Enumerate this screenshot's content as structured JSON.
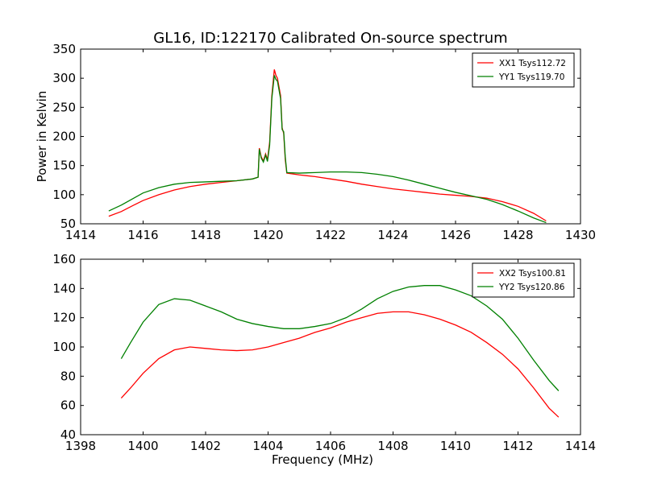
{
  "title": "GL16, ID:122170 Calibrated On-source spectrum",
  "colors": {
    "xx": "#ff0000",
    "yy": "#008000",
    "axes": "#000000",
    "background": "#ffffff"
  },
  "chart_data": [
    {
      "type": "line",
      "title": "GL16, ID:122170 Calibrated On-source spectrum",
      "xlabel": "",
      "ylabel": "Power in Kelvin",
      "xlim": [
        1414,
        1430
      ],
      "ylim": [
        50,
        350
      ],
      "xticks": [
        1414,
        1416,
        1418,
        1420,
        1422,
        1424,
        1426,
        1428,
        1430
      ],
      "yticks": [
        50,
        100,
        150,
        200,
        250,
        300,
        350
      ],
      "xtick_labels": [
        "1414",
        "1416",
        "1418",
        "1420",
        "1422",
        "1424",
        "1426",
        "1428",
        "1430"
      ],
      "ytick_labels": [
        "50",
        "100",
        "150",
        "200",
        "250",
        "300",
        "350"
      ],
      "grid": false,
      "legend_position": "top-right",
      "series": [
        {
          "name": "XX1 Tsys112.72",
          "color": "#ff0000",
          "points": [
            [
              1414.9,
              63
            ],
            [
              1415.3,
              71
            ],
            [
              1415.7,
              82
            ],
            [
              1416,
              90
            ],
            [
              1416.5,
              100
            ],
            [
              1417,
              108
            ],
            [
              1417.5,
              114
            ],
            [
              1418,
              118
            ],
            [
              1418.5,
              121
            ],
            [
              1419,
              124
            ],
            [
              1419.5,
              127
            ],
            [
              1419.68,
              130
            ],
            [
              1419.72,
              180
            ],
            [
              1419.78,
              165
            ],
            [
              1419.85,
              158
            ],
            [
              1419.92,
              170
            ],
            [
              1419.98,
              160
            ],
            [
              1420.05,
              190
            ],
            [
              1420.12,
              270
            ],
            [
              1420.2,
              315
            ],
            [
              1420.25,
              305
            ],
            [
              1420.3,
              300
            ],
            [
              1420.35,
              285
            ],
            [
              1420.4,
              270
            ],
            [
              1420.45,
              215
            ],
            [
              1420.5,
              205
            ],
            [
              1420.55,
              160
            ],
            [
              1420.6,
              137
            ],
            [
              1421,
              134
            ],
            [
              1421.5,
              131
            ],
            [
              1422,
              127
            ],
            [
              1422.5,
              123
            ],
            [
              1423,
              118
            ],
            [
              1423.5,
              114
            ],
            [
              1424,
              110
            ],
            [
              1424.5,
              107
            ],
            [
              1425,
              104
            ],
            [
              1425.5,
              101
            ],
            [
              1426,
              99
            ],
            [
              1426.5,
              97
            ],
            [
              1427,
              94
            ],
            [
              1427.5,
              88
            ],
            [
              1428,
              80
            ],
            [
              1428.5,
              68
            ],
            [
              1428.9,
              55
            ]
          ]
        },
        {
          "name": "YY1 Tsys119.70",
          "color": "#008000",
          "points": [
            [
              1414.9,
              72
            ],
            [
              1415.3,
              82
            ],
            [
              1415.7,
              94
            ],
            [
              1416,
              103
            ],
            [
              1416.5,
              112
            ],
            [
              1417,
              118
            ],
            [
              1417.5,
              121
            ],
            [
              1418,
              122
            ],
            [
              1418.5,
              123
            ],
            [
              1419,
              124
            ],
            [
              1419.5,
              127
            ],
            [
              1419.68,
              130
            ],
            [
              1419.72,
              178
            ],
            [
              1419.78,
              163
            ],
            [
              1419.85,
              156
            ],
            [
              1419.92,
              168
            ],
            [
              1419.98,
              157
            ],
            [
              1420.05,
              185
            ],
            [
              1420.12,
              265
            ],
            [
              1420.2,
              305
            ],
            [
              1420.25,
              298
            ],
            [
              1420.3,
              295
            ],
            [
              1420.35,
              280
            ],
            [
              1420.4,
              265
            ],
            [
              1420.45,
              212
            ],
            [
              1420.5,
              208
            ],
            [
              1420.55,
              165
            ],
            [
              1420.6,
              138
            ],
            [
              1421,
              137
            ],
            [
              1421.5,
              138
            ],
            [
              1422,
              139
            ],
            [
              1422.5,
              139
            ],
            [
              1423,
              138
            ],
            [
              1423.5,
              135
            ],
            [
              1424,
              131
            ],
            [
              1424.5,
              125
            ],
            [
              1425,
              118
            ],
            [
              1425.5,
              111
            ],
            [
              1426,
              104
            ],
            [
              1426.5,
              98
            ],
            [
              1427,
              92
            ],
            [
              1427.5,
              83
            ],
            [
              1428,
              72
            ],
            [
              1428.5,
              60
            ],
            [
              1428.9,
              52
            ]
          ]
        }
      ]
    },
    {
      "type": "line",
      "title": "",
      "xlabel": "Frequency (MHz)",
      "ylabel": "",
      "xlim": [
        1398,
        1414
      ],
      "ylim": [
        40,
        160
      ],
      "xticks": [
        1398,
        1400,
        1402,
        1404,
        1406,
        1408,
        1410,
        1412,
        1414
      ],
      "yticks": [
        40,
        60,
        80,
        100,
        120,
        140,
        160
      ],
      "xtick_labels": [
        "1398",
        "1400",
        "1402",
        "1404",
        "1406",
        "1408",
        "1410",
        "1412",
        "1414"
      ],
      "ytick_labels": [
        "40",
        "60",
        "80",
        "100",
        "120",
        "140",
        "160"
      ],
      "grid": false,
      "legend_position": "top-right",
      "series": [
        {
          "name": "XX2 Tsys100.81",
          "color": "#ff0000",
          "points": [
            [
              1399.3,
              65
            ],
            [
              1399.6,
              72
            ],
            [
              1400,
              82
            ],
            [
              1400.5,
              92
            ],
            [
              1401,
              98
            ],
            [
              1401.5,
              100
            ],
            [
              1402,
              99
            ],
            [
              1402.5,
              98
            ],
            [
              1403,
              97.5
            ],
            [
              1403.5,
              98
            ],
            [
              1404,
              100
            ],
            [
              1404.5,
              103
            ],
            [
              1405,
              106
            ],
            [
              1405.5,
              110
            ],
            [
              1406,
              113
            ],
            [
              1406.5,
              117
            ],
            [
              1407,
              120
            ],
            [
              1407.5,
              123
            ],
            [
              1408,
              124
            ],
            [
              1408.5,
              124
            ],
            [
              1409,
              122
            ],
            [
              1409.5,
              119
            ],
            [
              1410,
              115
            ],
            [
              1410.5,
              110
            ],
            [
              1411,
              103
            ],
            [
              1411.5,
              95
            ],
            [
              1412,
              85
            ],
            [
              1412.5,
              72
            ],
            [
              1413,
              58
            ],
            [
              1413.3,
              52
            ]
          ]
        },
        {
          "name": "YY2 Tsys120.86",
          "color": "#008000",
          "points": [
            [
              1399.3,
              92
            ],
            [
              1399.6,
              103
            ],
            [
              1400,
              117
            ],
            [
              1400.5,
              129
            ],
            [
              1401,
              133
            ],
            [
              1401.5,
              132
            ],
            [
              1402,
              128
            ],
            [
              1402.5,
              124
            ],
            [
              1403,
              119
            ],
            [
              1403.5,
              116
            ],
            [
              1404,
              114
            ],
            [
              1404.5,
              112.5
            ],
            [
              1405,
              112.5
            ],
            [
              1405.5,
              114
            ],
            [
              1406,
              116
            ],
            [
              1406.5,
              120
            ],
            [
              1407,
              126
            ],
            [
              1407.5,
              133
            ],
            [
              1408,
              138
            ],
            [
              1408.5,
              141
            ],
            [
              1409,
              142
            ],
            [
              1409.5,
              142
            ],
            [
              1410,
              139
            ],
            [
              1410.5,
              135
            ],
            [
              1411,
              128
            ],
            [
              1411.5,
              119
            ],
            [
              1412,
              106
            ],
            [
              1412.5,
              91
            ],
            [
              1413,
              77
            ],
            [
              1413.3,
              70
            ]
          ]
        }
      ]
    }
  ]
}
